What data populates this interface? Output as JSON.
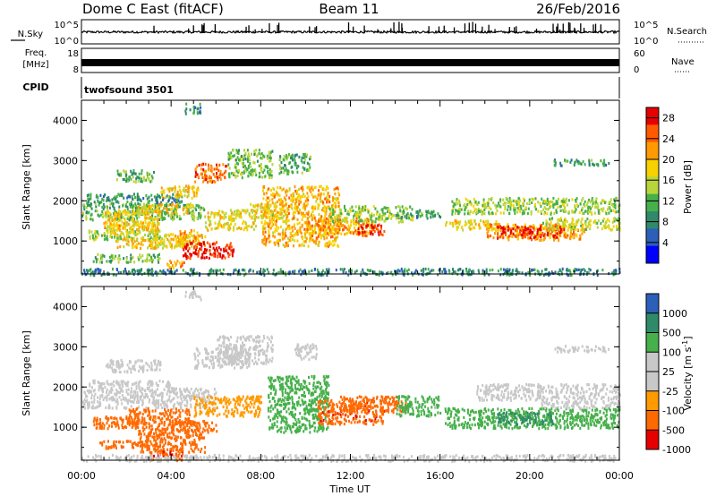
{
  "header": {
    "station": "Dome C East (fitACF)",
    "beam": "Beam 11",
    "date": "26/Feb/2016"
  },
  "noise_panel": {
    "left_label": "N.Sky",
    "left_ticks": [
      "10^5",
      "10^0"
    ],
    "right_ticks": [
      "10^5",
      "10^0"
    ],
    "right_label": "N.Search"
  },
  "freq_panel": {
    "left_label_1": "Freq.",
    "left_label_2": "[MHz]",
    "left_ticks": [
      "18",
      "8"
    ],
    "right_ticks": [
      "60",
      "0"
    ],
    "right_label": "Nave"
  },
  "cpid_panel": {
    "label": "CPID",
    "program": "twofsound 3501"
  },
  "colors": {
    "power": [
      "#0000ff",
      "#2b5fb8",
      "#2f8a6a",
      "#46b04a",
      "#b8d63a",
      "#f7d200",
      "#ff9a00",
      "#ff5a00",
      "#e60000"
    ],
    "velocity": [
      "#e60000",
      "#ff6a00",
      "#ff9a00",
      "#c8c8c8",
      "#c8c8c8",
      "#46b04a",
      "#2f8a6a",
      "#2b5fb8"
    ]
  },
  "chart_data": [
    {
      "type": "heatmap",
      "name": "power",
      "xlabel": "Time UT",
      "ylabel": "Slant Range [km]",
      "x_ticks": [
        "00:00",
        "04:00",
        "08:00",
        "12:00",
        "16:00",
        "20:00",
        "00:00"
      ],
      "y_ticks": [
        "1000",
        "2000",
        "3000",
        "4000"
      ],
      "xlim": [
        0,
        24
      ],
      "ylim": [
        180,
        4500
      ],
      "colorbar_label": "Power [dB]",
      "colorbar_ticks": [
        "4",
        "8",
        "12",
        "16",
        "20",
        "24",
        "28"
      ],
      "colorbar_range": [
        0,
        30
      ],
      "regions": [
        {
          "t0": 0.0,
          "t1": 5.5,
          "r0": 1550,
          "r1": 1950,
          "v": 12
        },
        {
          "t0": 0.2,
          "t1": 4.5,
          "r0": 1950,
          "r1": 2200,
          "v": 9
        },
        {
          "t0": 0.3,
          "t1": 3.5,
          "r0": 1050,
          "r1": 1300,
          "v": 14
        },
        {
          "t0": 0.5,
          "t1": 3.5,
          "r0": 500,
          "r1": 700,
          "v": 12
        },
        {
          "t0": 0.8,
          "t1": 3.2,
          "r0": 1300,
          "r1": 1500,
          "v": 20
        },
        {
          "t0": 1.0,
          "t1": 3.5,
          "r0": 1200,
          "r1": 1800,
          "v": 18
        },
        {
          "t0": 1.5,
          "t1": 3.2,
          "r0": 2500,
          "r1": 2800,
          "v": 12
        },
        {
          "t0": 1.5,
          "t1": 4.5,
          "r0": 850,
          "r1": 1100,
          "v": 19
        },
        {
          "t0": 2.5,
          "t1": 5.0,
          "r0": 1700,
          "r1": 1950,
          "v": 19
        },
        {
          "t0": 3.2,
          "t1": 5.5,
          "r0": 900,
          "r1": 1200,
          "v": 18
        },
        {
          "t0": 3.5,
          "t1": 5.2,
          "r0": 2100,
          "r1": 2400,
          "v": 19
        },
        {
          "t0": 3.8,
          "t1": 4.6,
          "r0": 350,
          "r1": 550,
          "v": 22
        },
        {
          "t0": 4.3,
          "t1": 5.2,
          "r0": 1000,
          "r1": 1300,
          "v": 21
        },
        {
          "t0": 4.5,
          "t1": 6.8,
          "r0": 600,
          "r1": 1000,
          "v": 28
        },
        {
          "t0": 4.6,
          "t1": 5.3,
          "r0": 4200,
          "r1": 4450,
          "v": 9
        },
        {
          "t0": 5.0,
          "t1": 6.5,
          "r0": 2500,
          "r1": 2950,
          "v": 24
        },
        {
          "t0": 5.5,
          "t1": 7.8,
          "r0": 1300,
          "r1": 1800,
          "v": 18
        },
        {
          "t0": 6.5,
          "t1": 8.5,
          "r0": 2600,
          "r1": 3300,
          "v": 13
        },
        {
          "t0": 7.5,
          "t1": 9.0,
          "r0": 1600,
          "r1": 1950,
          "v": 17
        },
        {
          "t0": 8.0,
          "t1": 11.5,
          "r0": 900,
          "r1": 2400,
          "v": 20
        },
        {
          "t0": 8.8,
          "t1": 10.2,
          "r0": 2700,
          "r1": 3200,
          "v": 11
        },
        {
          "t0": 10.0,
          "t1": 13.0,
          "r0": 1200,
          "r1": 1600,
          "v": 22
        },
        {
          "t0": 11.0,
          "t1": 14.8,
          "r0": 1500,
          "r1": 1900,
          "v": 14
        },
        {
          "t0": 12.3,
          "t1": 13.5,
          "r0": 1150,
          "r1": 1450,
          "v": 27
        },
        {
          "t0": 14.0,
          "t1": 16.0,
          "r0": 1600,
          "r1": 1800,
          "v": 10
        },
        {
          "t0": 16.2,
          "t1": 18.5,
          "r0": 1300,
          "r1": 1550,
          "v": 18
        },
        {
          "t0": 16.5,
          "t1": 24.0,
          "r0": 1700,
          "r1": 2100,
          "v": 14
        },
        {
          "t0": 18.0,
          "t1": 22.5,
          "r0": 1050,
          "r1": 1450,
          "v": 21
        },
        {
          "t0": 18.5,
          "t1": 21.5,
          "r0": 1100,
          "r1": 1400,
          "v": 28
        },
        {
          "t0": 20.5,
          "t1": 24.0,
          "r0": 1300,
          "r1": 1600,
          "v": 16
        },
        {
          "t0": 21.0,
          "t1": 23.5,
          "r0": 2900,
          "r1": 3050,
          "v": 10
        },
        {
          "t0": 0.0,
          "t1": 24.0,
          "r0": 180,
          "r1": 340,
          "v": 8
        }
      ]
    },
    {
      "type": "heatmap",
      "name": "velocity",
      "xlabel": "Time UT",
      "ylabel": "Slant Range [km]",
      "x_ticks": [
        "00:00",
        "04:00",
        "08:00",
        "12:00",
        "16:00",
        "20:00",
        "00:00"
      ],
      "y_ticks": [
        "1000",
        "2000",
        "3000",
        "4000"
      ],
      "xlim": [
        0,
        24
      ],
      "ylim": [
        180,
        4500
      ],
      "colorbar_label": "Velocity [m s^-1]",
      "colorbar_ticks": [
        "1000",
        "500",
        "100",
        "25",
        "-25",
        "-100",
        "-500",
        "-1000"
      ],
      "regions": [
        {
          "t0": 0.0,
          "t1": 6.0,
          "r0": 1500,
          "r1": 2000,
          "v": 0
        },
        {
          "t0": 0.3,
          "t1": 4.0,
          "r0": 2000,
          "r1": 2200,
          "v": 0
        },
        {
          "t0": 1.0,
          "t1": 3.5,
          "r0": 2400,
          "r1": 2700,
          "v": 0
        },
        {
          "t0": 0.5,
          "t1": 3.5,
          "r0": 1000,
          "r1": 1300,
          "v": -150
        },
        {
          "t0": 0.8,
          "t1": 3.0,
          "r0": 500,
          "r1": 700,
          "v": -200
        },
        {
          "t0": 2.0,
          "t1": 4.8,
          "r0": 1100,
          "r1": 1500,
          "v": -300
        },
        {
          "t0": 2.5,
          "t1": 5.5,
          "r0": 400,
          "r1": 1000,
          "v": -300
        },
        {
          "t0": 3.0,
          "t1": 4.5,
          "r0": 200,
          "r1": 500,
          "v": -400
        },
        {
          "t0": 3.5,
          "t1": 6.0,
          "r0": 900,
          "r1": 1200,
          "v": -200
        },
        {
          "t0": 4.6,
          "t1": 5.3,
          "r0": 4200,
          "r1": 4450,
          "v": 0
        },
        {
          "t0": 5.0,
          "t1": 7.5,
          "r0": 2500,
          "r1": 3000,
          "v": 0
        },
        {
          "t0": 6.0,
          "t1": 8.5,
          "r0": 2600,
          "r1": 3300,
          "v": 0
        },
        {
          "t0": 5.0,
          "t1": 8.0,
          "r0": 1300,
          "r1": 1800,
          "v": -40
        },
        {
          "t0": 8.3,
          "t1": 11.0,
          "r0": 900,
          "r1": 2300,
          "v": 200
        },
        {
          "t0": 9.5,
          "t1": 10.5,
          "r0": 2700,
          "r1": 3100,
          "v": 0
        },
        {
          "t0": 10.5,
          "t1": 13.5,
          "r0": 1100,
          "r1": 1700,
          "v": -400
        },
        {
          "t0": 11.5,
          "t1": 14.5,
          "r0": 1400,
          "r1": 1800,
          "v": -200
        },
        {
          "t0": 14.0,
          "t1": 16.0,
          "r0": 1300,
          "r1": 1800,
          "v": 150
        },
        {
          "t0": 16.2,
          "t1": 24.0,
          "r0": 1000,
          "r1": 1500,
          "v": 300
        },
        {
          "t0": 17.5,
          "t1": 24.0,
          "r0": 1700,
          "r1": 2100,
          "v": 60
        },
        {
          "t0": 18.5,
          "t1": 21.0,
          "r0": 1100,
          "r1": 1400,
          "v": 600
        },
        {
          "t0": 20.5,
          "t1": 24.0,
          "r0": 1500,
          "r1": 1700,
          "v": 0
        },
        {
          "t0": 21.0,
          "t1": 23.5,
          "r0": 2900,
          "r1": 3050,
          "v": 0
        },
        {
          "t0": 0.0,
          "t1": 24.0,
          "r0": 180,
          "r1": 340,
          "v": 0
        }
      ]
    }
  ]
}
